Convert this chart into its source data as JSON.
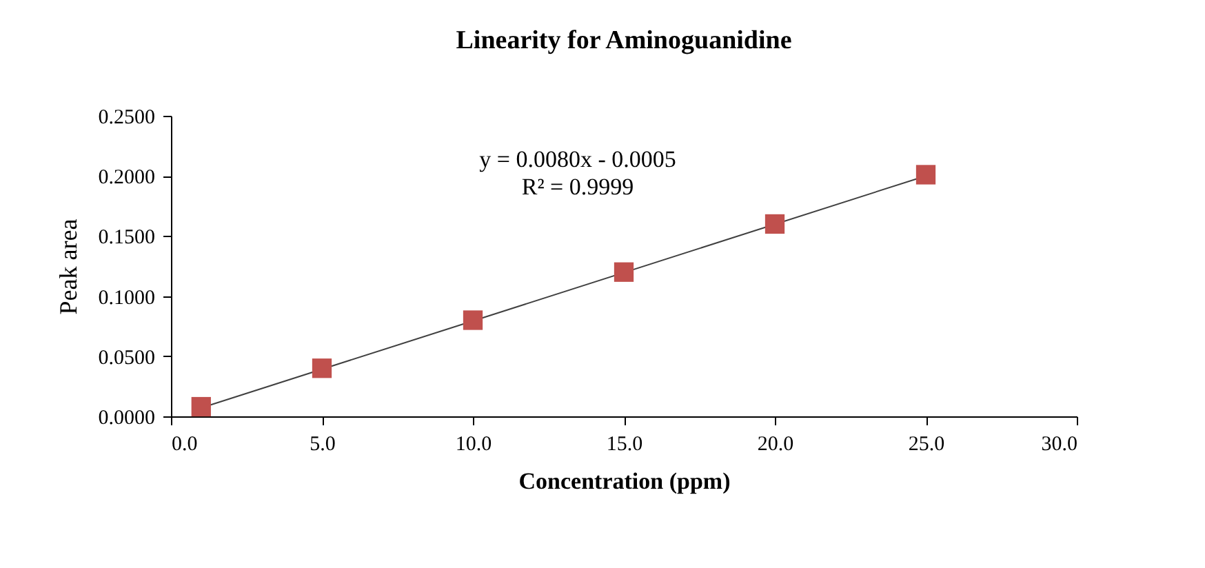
{
  "chart_data": {
    "type": "scatter",
    "title": "Linearity for Aminoguanidine",
    "xlabel": "Concentration (ppm)",
    "ylabel": "Peak area",
    "annotations": [
      "y = 0.0080x - 0.0005",
      "R² = 0.9999"
    ],
    "series": [
      {
        "type": "scatter",
        "color": "#c0504d",
        "marker": "square",
        "x": [
          1,
          5,
          10,
          15,
          20,
          25
        ],
        "values": [
          0.008,
          0.04,
          0.08,
          0.12,
          0.16,
          0.201
        ]
      },
      {
        "type": "line",
        "color": "#404040",
        "marker": "none",
        "x": [
          1,
          25
        ],
        "values": [
          0.007,
          0.2
        ]
      }
    ],
    "xlim": [
      0,
      30
    ],
    "xticks": [
      {
        "value": 0,
        "label": "0.0"
      },
      {
        "value": 5,
        "label": "5.0"
      },
      {
        "value": 10,
        "label": "10.0"
      },
      {
        "value": 15,
        "label": "15.0"
      },
      {
        "value": 20,
        "label": "20.0"
      },
      {
        "value": 25,
        "label": "25.0"
      },
      {
        "value": 30,
        "label": "30.0"
      }
    ],
    "ylim": [
      0,
      0.25
    ],
    "yticks": [
      {
        "value": 0,
        "label": "0.0000"
      },
      {
        "value": 0.05,
        "label": "0.0500"
      },
      {
        "value": 0.1,
        "label": "0.1000"
      },
      {
        "value": 0.15,
        "label": "0.1500"
      },
      {
        "value": 0.2,
        "label": "0.2000"
      },
      {
        "value": 0.25,
        "label": "0.2500"
      }
    ],
    "grid": false
  }
}
